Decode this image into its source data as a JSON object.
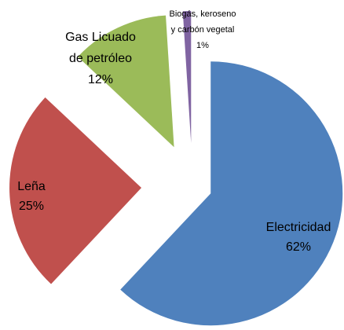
{
  "chart_data": {
    "type": "pie",
    "categories": [
      "Electricidad",
      "Leña",
      "Gas Licuado\nde petróleo",
      "Biogás, keroseno\ny carbón vegetal"
    ],
    "values": [
      62,
      25,
      12,
      1
    ],
    "value_labels": [
      "62%",
      "25%",
      "12%",
      "1%"
    ],
    "colors": [
      "#4f81bd",
      "#c0504d",
      "#9bbb59",
      "#8064a2"
    ]
  }
}
